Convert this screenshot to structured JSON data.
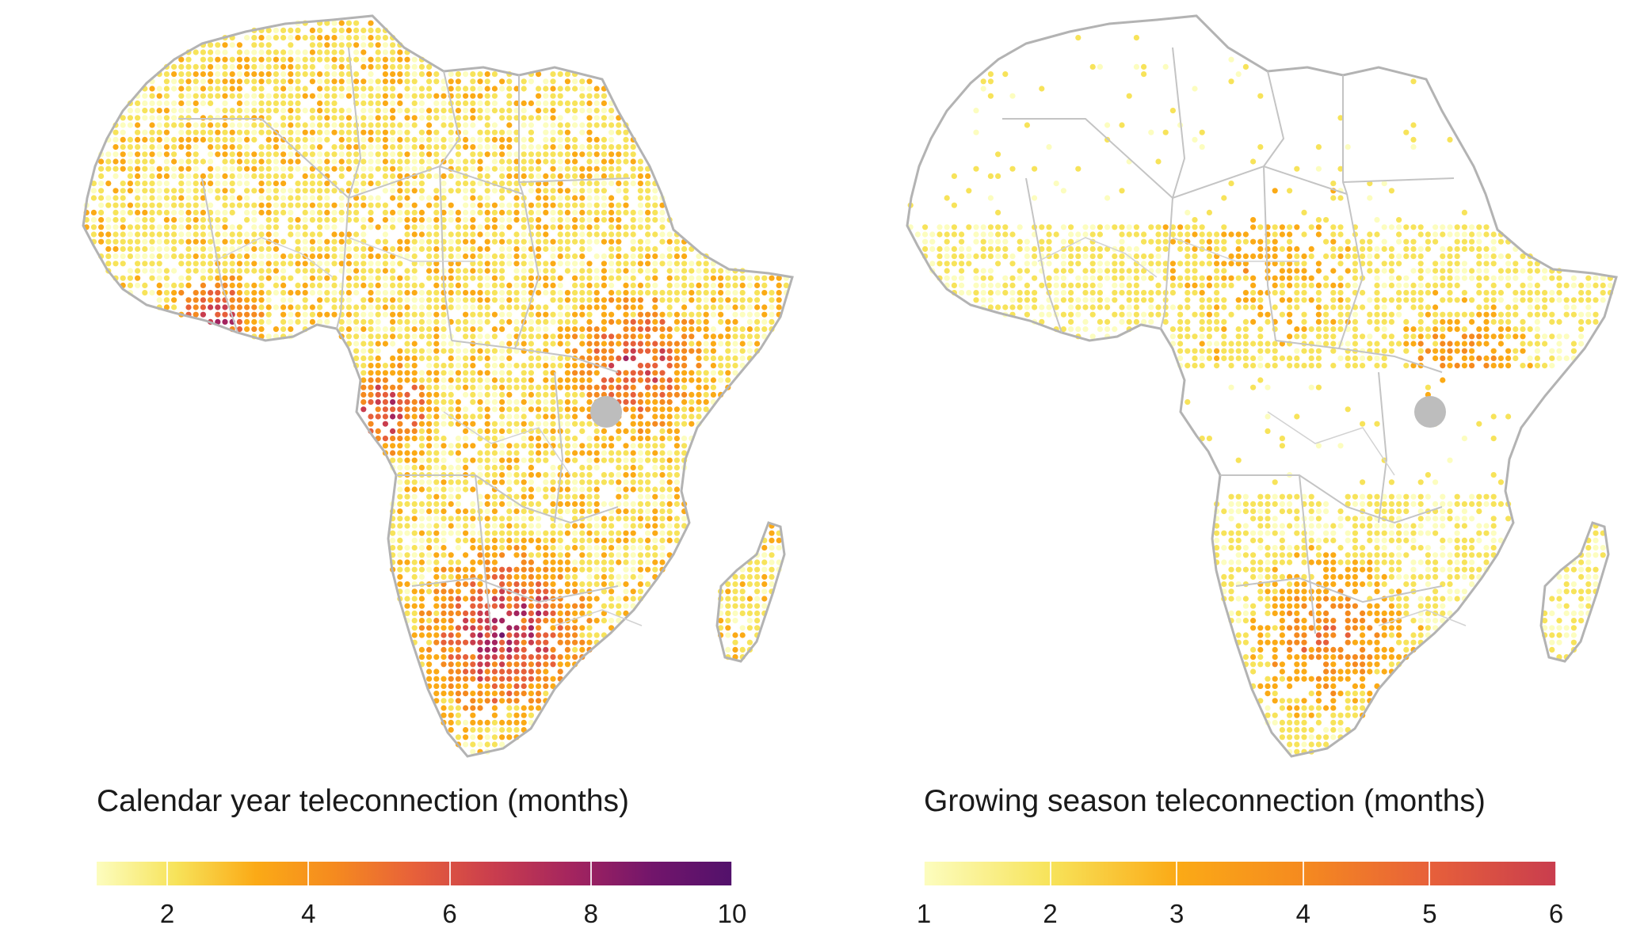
{
  "panels": [
    {
      "id": "calendar",
      "legend_title": "Calendar year teleconnection (months)",
      "scale_min": 1,
      "scale_max": 10,
      "ticks": [
        "2",
        "4",
        "6",
        "8",
        "10"
      ],
      "tick_values": [
        2,
        4,
        6,
        8,
        10
      ],
      "colors": [
        "#fcfdbf",
        "#f7e35a",
        "#fbaa16",
        "#f58a1f",
        "#e7603a",
        "#c93d4e",
        "#a3245f",
        "#72156b",
        "#52116b"
      ],
      "dot_density": 0.9,
      "hotspots": [
        "west-africa-coast",
        "gabon-congo",
        "east-africa",
        "southern-africa"
      ]
    },
    {
      "id": "growing",
      "legend_title": "Growing season teleconnection (months)",
      "scale_min": 1,
      "scale_max": 6,
      "ticks": [
        "1",
        "2",
        "3",
        "4",
        "5",
        "6"
      ],
      "tick_values": [
        1,
        2,
        3,
        4,
        5,
        6
      ],
      "colors": [
        "#fcfdbf",
        "#f7e35a",
        "#fbaa16",
        "#f58a1f",
        "#e7603a",
        "#c93d4e"
      ],
      "dot_density": 0.45,
      "hotspots": [
        "sahel-band",
        "east-africa",
        "southern-africa"
      ]
    }
  ],
  "map": {
    "land_color": "#ffffff",
    "border_color": "#b3b3b3",
    "lake_color": "#bdbdbd"
  }
}
